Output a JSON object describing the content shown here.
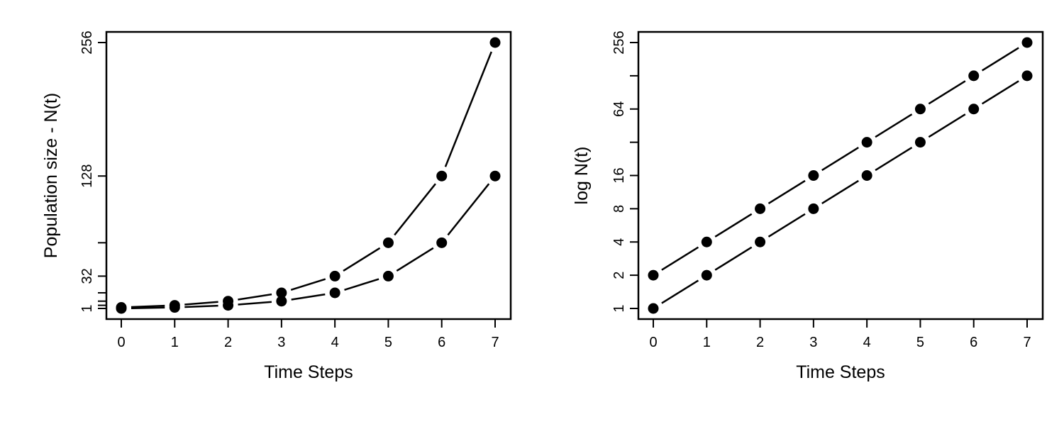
{
  "chart_data": [
    {
      "type": "line",
      "xlabel": "Time Steps",
      "ylabel": "Population size - N(t)",
      "x": [
        0,
        1,
        2,
        3,
        4,
        5,
        6,
        7
      ],
      "xlim": [
        0,
        7
      ],
      "ylim": [
        1,
        256
      ],
      "yscale": "linear",
      "xticks": [
        0,
        1,
        2,
        3,
        4,
        5,
        6,
        7
      ],
      "yticks": [
        1,
        4,
        8,
        16,
        32,
        64,
        128,
        256
      ],
      "ytick_labels": [
        "1",
        "",
        "",
        "",
        "32",
        "",
        "128",
        "256"
      ],
      "grid": false,
      "series": [
        {
          "values": [
            2,
            4,
            8,
            16,
            32,
            64,
            128,
            256
          ]
        },
        {
          "values": [
            1,
            2,
            4,
            8,
            16,
            32,
            64,
            128
          ]
        }
      ]
    },
    {
      "type": "line",
      "xlabel": "Time Steps",
      "ylabel": "log N(t)",
      "x": [
        0,
        1,
        2,
        3,
        4,
        5,
        6,
        7
      ],
      "xlim": [
        0,
        7
      ],
      "ylim": [
        1,
        256
      ],
      "yscale": "log2",
      "xticks": [
        0,
        1,
        2,
        3,
        4,
        5,
        6,
        7
      ],
      "yticks": [
        1,
        2,
        4,
        8,
        16,
        32,
        64,
        128,
        256
      ],
      "ytick_labels": [
        "1",
        "2",
        "4",
        "8",
        "16",
        "",
        "64",
        "",
        "256"
      ],
      "grid": false,
      "series": [
        {
          "values": [
            2,
            4,
            8,
            16,
            32,
            64,
            128,
            256
          ]
        },
        {
          "values": [
            1,
            2,
            4,
            8,
            16,
            32,
            64,
            128
          ]
        }
      ]
    }
  ]
}
